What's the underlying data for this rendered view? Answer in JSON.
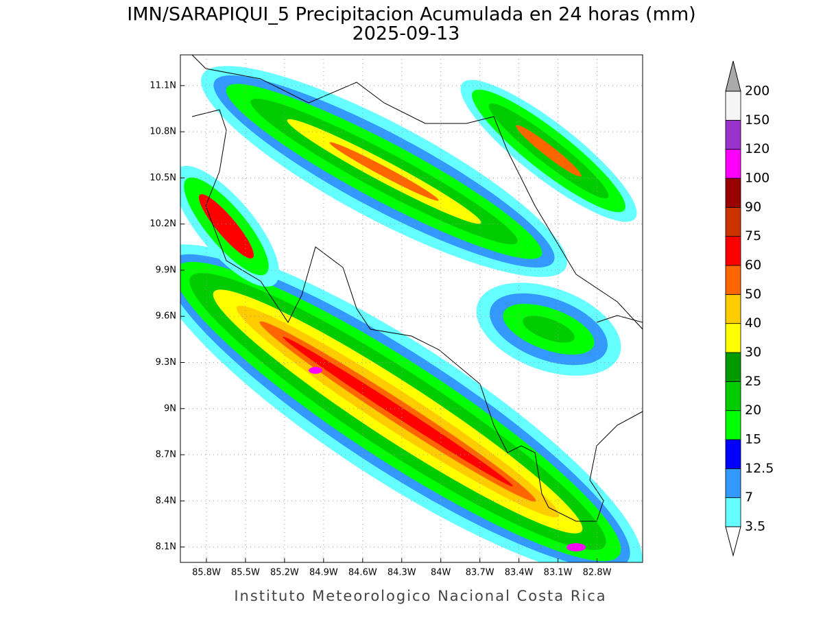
{
  "title": "IMN/SARAPIQUI_5 Precipitacion Acumulada en 24 horas (mm)",
  "subtitle": "2025-09-13",
  "footer": "Instituto Meteorologico Nacional Costa Rica",
  "map": {
    "xlim": [
      -86.0,
      -82.45
    ],
    "ylim": [
      8.0,
      11.3
    ],
    "grid": true,
    "xticks": [
      {
        "value": -85.8,
        "label": "85.8W"
      },
      {
        "value": -85.5,
        "label": "85.5W"
      },
      {
        "value": -85.2,
        "label": "85.2W"
      },
      {
        "value": -84.9,
        "label": "84.9W"
      },
      {
        "value": -84.6,
        "label": "84.6W"
      },
      {
        "value": -84.3,
        "label": "84.3W"
      },
      {
        "value": -84.0,
        "label": "84W"
      },
      {
        "value": -83.7,
        "label": "83.7W"
      },
      {
        "value": -83.4,
        "label": "83.4W"
      },
      {
        "value": -83.1,
        "label": "83.1W"
      },
      {
        "value": -82.8,
        "label": "82.8W"
      }
    ],
    "yticks": [
      {
        "value": 8.1,
        "label": "8.1N"
      },
      {
        "value": 8.4,
        "label": "8.4N"
      },
      {
        "value": 8.7,
        "label": "8.7N"
      },
      {
        "value": 9.0,
        "label": "9N"
      },
      {
        "value": 9.3,
        "label": "9.3N"
      },
      {
        "value": 9.6,
        "label": "9.6N"
      },
      {
        "value": 9.9,
        "label": "9.9N"
      },
      {
        "value": 10.2,
        "label": "10.2N"
      },
      {
        "value": 10.5,
        "label": "10.5N"
      },
      {
        "value": 10.8,
        "label": "10.8N"
      },
      {
        "value": 11.1,
        "label": "11.1N"
      }
    ]
  },
  "colorbar": {
    "levels": [
      3.5,
      7,
      12.5,
      15,
      20,
      25,
      30,
      40,
      50,
      60,
      75,
      90,
      100,
      120,
      150,
      200
    ],
    "colors": [
      "#66ffff",
      "#3399ff",
      "#0000ff",
      "#00ff00",
      "#00cc00",
      "#009900",
      "#ffff00",
      "#ffcc00",
      "#ff6600",
      "#ff0000",
      "#cc3300",
      "#990000",
      "#ff00ff",
      "#9933cc",
      "#f5f5f5"
    ],
    "under_color": "#ffffff",
    "over_color": "#aaaaaa"
  }
}
